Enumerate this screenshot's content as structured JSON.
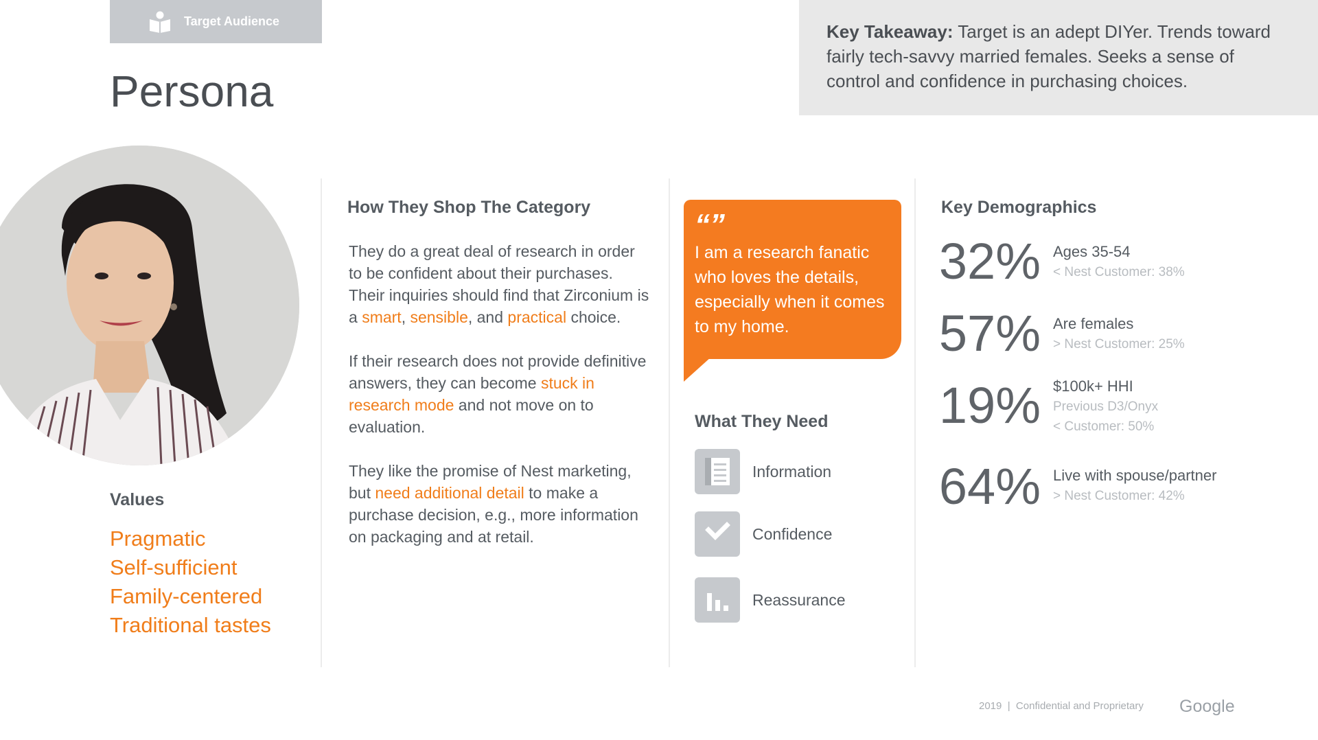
{
  "header": {
    "tag_label": "Target Audience",
    "title": "Persona"
  },
  "takeaway": {
    "label": "Key Takeaway:",
    "text": " Target is an adept DIYer. Trends toward fairly tech-savvy married females. Seeks a sense of control and confidence in purchasing choices."
  },
  "values": {
    "heading": "Values",
    "items": [
      "Pragmatic",
      "Self-sufficient",
      "Family-centered",
      "Traditional tastes"
    ]
  },
  "shop": {
    "heading": "How They Shop The Category",
    "p1": [
      "They do a great deal of research in order to be confident about their purchases. Their inquiries should find that Zirconium is a ",
      "smart",
      ", ",
      "sensible",
      ", and ",
      "practical",
      " choice."
    ],
    "p2": [
      "If their research does not provide definitive answers, they can become ",
      "stuck in research mode",
      " and not move on to evaluation."
    ],
    "p3": [
      "They like the promise of Nest marketing, but ",
      "need additional detail",
      " to make a purchase decision, e.g., more information on packaging and at retail."
    ]
  },
  "quote": {
    "mark": "“”",
    "text": "I am a research fanatic who loves the details, especially when it comes to my home."
  },
  "needs": {
    "heading": "What They Need",
    "items": [
      {
        "label": "Information",
        "icon": "document-icon"
      },
      {
        "label": "Confidence",
        "icon": "clipboard-check-icon"
      },
      {
        "label": "Reassurance",
        "icon": "bar-chart-icon"
      }
    ]
  },
  "demographics": {
    "heading": "Key Demographics",
    "items": [
      {
        "pct": "32%",
        "label": "Ages 35-54",
        "sub1": "< Nest Customer: 38%",
        "sub2": ""
      },
      {
        "pct": "57%",
        "label": "Are females",
        "sub1": "> Nest Customer: 25%",
        "sub2": ""
      },
      {
        "pct": "19%",
        "label": "$100k+ HHI",
        "sub1": "Previous D3/Onyx",
        "sub2": "< Customer: 50%"
      },
      {
        "pct": "64%",
        "label": "Live with spouse/partner",
        "sub1": "> Nest Customer: 42%",
        "sub2": ""
      }
    ]
  },
  "footer": {
    "text": "2019  |  Confidential and Proprietary",
    "logo": "Google"
  },
  "colors": {
    "accent": "#f47b20",
    "highlight": "#f07d1a",
    "icon_gray": "#c6c9cd"
  }
}
